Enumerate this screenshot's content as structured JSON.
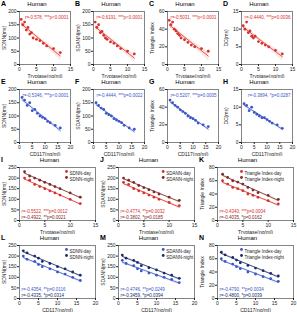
{
  "chart_data": [
    {
      "type": "scatter",
      "letter": "A",
      "title": "Human",
      "x_label": "Tryptase(ng/ml)",
      "y_label": "SDNN(ms)",
      "xlim": [
        0,
        15
      ],
      "xticks": [
        0,
        5,
        10,
        15
      ],
      "ylim": [
        0,
        200
      ],
      "yticks": [
        0,
        50,
        100,
        150,
        200
      ],
      "series": [
        {
          "color": "#d9302b",
          "annotation": "r=-0.578, ***p<0.0001",
          "x": [
            0.5,
            1,
            1.5,
            2,
            2.5,
            3,
            3.5,
            4,
            5,
            6,
            7,
            8,
            10,
            12
          ],
          "y": [
            170,
            150,
            160,
            130,
            140,
            115,
            120,
            100,
            95,
            90,
            80,
            70,
            60,
            45
          ]
        }
      ]
    },
    {
      "type": "scatter",
      "letter": "B",
      "title": "Human",
      "x_label": "Tryptase(ng/ml)",
      "y_label": "SDANN(ms)",
      "xlim": [
        0,
        15
      ],
      "xticks": [
        0,
        5,
        10,
        15
      ],
      "ylim": [
        0,
        200
      ],
      "yticks": [
        0,
        50,
        100,
        150,
        200
      ],
      "series": [
        {
          "color": "#d9302b",
          "annotation": "r=-0.6191, ***p<0.0001",
          "x": [
            0.5,
            1,
            1.5,
            2,
            2.5,
            3,
            3.5,
            4,
            5,
            6,
            7,
            8,
            10,
            12
          ],
          "y": [
            160,
            140,
            150,
            120,
            125,
            110,
            100,
            95,
            85,
            80,
            70,
            60,
            50,
            40
          ]
        }
      ]
    },
    {
      "type": "scatter",
      "letter": "C",
      "title": "Human",
      "x_label": "Tryptase(ng/ml)",
      "y_label": "Triangle Index",
      "xlim": [
        0,
        15
      ],
      "xticks": [
        0,
        5,
        10,
        15
      ],
      "ylim": [
        0,
        60
      ],
      "yticks": [
        0,
        20,
        40,
        60
      ],
      "series": [
        {
          "color": "#d9302b",
          "annotation": "r=-0.5031, ***p<0.0001",
          "x": [
            0.5,
            1,
            1.5,
            2,
            2.5,
            3,
            3.5,
            4,
            5,
            6,
            7,
            8,
            10,
            12
          ],
          "y": [
            50,
            45,
            48,
            40,
            38,
            35,
            33,
            30,
            28,
            25,
            22,
            20,
            18,
            15
          ]
        }
      ]
    },
    {
      "type": "scatter",
      "letter": "D",
      "title": "Human",
      "x_label": "Tryptase(ng/ml)",
      "y_label": "DC(ms)",
      "xlim": [
        0,
        15
      ],
      "xticks": [
        0,
        5,
        10,
        15
      ],
      "ylim": [
        0,
        15
      ],
      "yticks": [
        0,
        5,
        10,
        15
      ],
      "series": [
        {
          "color": "#d9302b",
          "annotation": "r=-0.4440, ***p=0.0036",
          "x": [
            0.5,
            1,
            1.5,
            2,
            2.5,
            3,
            3.5,
            4,
            5,
            6,
            7,
            8,
            10,
            12
          ],
          "y": [
            11,
            10,
            12,
            9,
            9.5,
            8,
            7.5,
            8,
            6.5,
            6,
            5.5,
            5,
            4,
            3
          ]
        }
      ]
    },
    {
      "type": "scatter",
      "letter": "E",
      "title": "Human",
      "x_label": "CD117(ng/ml)",
      "y_label": "SDNN(ms)",
      "xlim": [
        0,
        20
      ],
      "xticks": [
        0,
        5,
        10,
        15,
        20
      ],
      "ylim": [
        0,
        200
      ],
      "yticks": [
        0,
        50,
        100,
        150,
        200
      ],
      "series": [
        {
          "color": "#3a56c8",
          "annotation": "r=-0.5346, ***p<0.0001",
          "x": [
            1,
            2,
            3,
            4,
            5,
            6,
            7,
            8,
            9,
            10,
            11,
            12,
            14,
            16
          ],
          "y": [
            170,
            160,
            140,
            150,
            120,
            125,
            110,
            100,
            95,
            90,
            80,
            75,
            65,
            55
          ]
        }
      ]
    },
    {
      "type": "scatter",
      "letter": "F",
      "title": "Human",
      "x_label": "CD117(ng/ml)",
      "y_label": "SDANN(ms)",
      "xlim": [
        0,
        20
      ],
      "xticks": [
        0,
        5,
        10,
        15,
        20
      ],
      "ylim": [
        0,
        200
      ],
      "yticks": [
        0,
        50,
        100,
        150,
        200
      ],
      "series": [
        {
          "color": "#3a56c8",
          "annotation": "r=-0.4444, ***p=0.0022",
          "x": [
            1,
            2,
            3,
            4,
            5,
            6,
            7,
            8,
            9,
            10,
            11,
            12,
            14,
            16
          ],
          "y": [
            150,
            140,
            130,
            125,
            110,
            105,
            100,
            90,
            85,
            80,
            75,
            65,
            55,
            50
          ]
        }
      ]
    },
    {
      "type": "scatter",
      "letter": "G",
      "title": "Human",
      "x_label": "CD117(ng/ml)",
      "y_label": "Triangle Index",
      "xlim": [
        0,
        20
      ],
      "xticks": [
        0,
        5,
        10,
        15,
        20
      ],
      "ylim": [
        0,
        60
      ],
      "yticks": [
        0,
        20,
        40,
        60
      ],
      "series": [
        {
          "color": "#3a56c8",
          "annotation": "r=-0.5207, ***p=0.0005",
          "x": [
            1,
            2,
            3,
            4,
            5,
            6,
            7,
            8,
            9,
            10,
            11,
            12,
            14,
            16
          ],
          "y": [
            48,
            45,
            42,
            40,
            37,
            35,
            33,
            30,
            28,
            27,
            25,
            22,
            20,
            18
          ]
        }
      ]
    },
    {
      "type": "scatter",
      "letter": "H",
      "title": "Human",
      "x_label": "CD117(ng/ml)",
      "y_label": "DC(ms)",
      "xlim": [
        0,
        20
      ],
      "xticks": [
        0,
        5,
        10,
        15,
        20
      ],
      "ylim": [
        0,
        15
      ],
      "yticks": [
        0,
        5,
        10,
        15
      ],
      "series": [
        {
          "color": "#3a56c8",
          "annotation": "r=-0.3894, *p=0.0287",
          "x": [
            1,
            2,
            3,
            4,
            5,
            6,
            7,
            8,
            9,
            10,
            11,
            12,
            14,
            16
          ],
          "y": [
            11,
            10.5,
            9,
            10,
            8.5,
            8,
            7.5,
            7,
            7,
            6.5,
            6,
            5.5,
            5,
            4
          ]
        }
      ]
    },
    {
      "type": "scatter",
      "letter": "I",
      "title": "Human",
      "x_label": "Tryptase(ng/ml)",
      "y_label": "SDNN(ms)",
      "xlim": [
        0,
        15
      ],
      "xticks": [
        0,
        5,
        10,
        15
      ],
      "ylim": [
        0,
        250
      ],
      "yticks": [
        0,
        50,
        100,
        150,
        200,
        250
      ],
      "legend": "top-right",
      "series": [
        {
          "name": "SDNN-day",
          "color": "#d9302b",
          "annotation": "r=-0.5522, ***p=0.0012",
          "x": [
            1,
            2,
            3,
            4,
            5,
            6,
            7,
            8,
            10,
            12
          ],
          "y": [
            200,
            190,
            170,
            160,
            150,
            140,
            130,
            120,
            100,
            80
          ]
        },
        {
          "name": "SDNN-night",
          "color": "#7a2a2a",
          "annotation": "r=-0.4922, **p=0.0021",
          "x": [
            1,
            2,
            3,
            4,
            5,
            6,
            7,
            8,
            10,
            12
          ],
          "y": [
            230,
            210,
            200,
            190,
            180,
            170,
            160,
            150,
            130,
            110
          ]
        }
      ]
    },
    {
      "type": "scatter",
      "letter": "J",
      "title": "Human",
      "x_label": "Tryptase(ng/ml)",
      "y_label": "SDANN(ms)",
      "xlim": [
        0,
        15
      ],
      "xticks": [
        0,
        5,
        10,
        15
      ],
      "ylim": [
        0,
        250
      ],
      "yticks": [
        0,
        50,
        100,
        150,
        200,
        250
      ],
      "legend": "top-right",
      "series": [
        {
          "name": "SDANN-day",
          "color": "#d9302b",
          "annotation": "r=-0.4774, **p=0.0032",
          "x": [
            1,
            2,
            3,
            4,
            5,
            6,
            7,
            8,
            10,
            12
          ],
          "y": [
            180,
            170,
            150,
            140,
            130,
            120,
            110,
            100,
            85,
            70
          ]
        },
        {
          "name": "SDANN-night",
          "color": "#7a2a2a",
          "annotation": "r=-0.3802, *p=0.0185",
          "x": [
            1,
            2,
            3,
            4,
            5,
            6,
            7,
            8,
            10,
            12
          ],
          "y": [
            200,
            190,
            180,
            165,
            155,
            145,
            135,
            125,
            110,
            95
          ]
        }
      ]
    },
    {
      "type": "scatter",
      "letter": "K",
      "title": "Human",
      "x_label": "Tryptase(ng/ml)",
      "y_label": "Triangle Index",
      "xlim": [
        0,
        15
      ],
      "xticks": [
        0,
        5,
        10,
        15
      ],
      "ylim": [
        0,
        80
      ],
      "yticks": [
        0,
        20,
        40,
        60,
        80
      ],
      "legend": "top-right",
      "series": [
        {
          "name": "Triangle Index-day",
          "color": "#d9302b",
          "annotation": "r=-0.4340, ***p=0.0004",
          "x": [
            1,
            2,
            3,
            4,
            5,
            6,
            7,
            8,
            10,
            12
          ],
          "y": [
            60,
            55,
            50,
            48,
            45,
            40,
            38,
            35,
            30,
            25
          ]
        },
        {
          "name": "Triangle Index-night",
          "color": "#7a2a2a",
          "annotation": "r=-0.4035, *p=0.0162",
          "x": [
            1,
            2,
            3,
            4,
            5,
            6,
            7,
            8,
            10,
            12
          ],
          "y": [
            70,
            65,
            60,
            58,
            55,
            50,
            46,
            42,
            38,
            32
          ]
        }
      ]
    },
    {
      "type": "scatter",
      "letter": "L",
      "title": "Human",
      "x_label": "CD117(ng/ml)",
      "y_label": "SDNN(ms)",
      "xlim": [
        0,
        20
      ],
      "xticks": [
        0,
        5,
        10,
        15,
        20
      ],
      "ylim": [
        0,
        250
      ],
      "yticks": [
        0,
        50,
        100,
        150,
        200,
        250
      ],
      "legend": "top-right",
      "series": [
        {
          "name": "SDNN-day",
          "color": "#3a56c8",
          "annotation": "r=-0.4354, **p=0.0116",
          "x": [
            1,
            2,
            4,
            5,
            6,
            8,
            10,
            12,
            14,
            16
          ],
          "y": [
            200,
            185,
            175,
            160,
            150,
            140,
            125,
            115,
            100,
            85
          ]
        },
        {
          "name": "SDNN-night",
          "color": "#1b2a6b",
          "annotation": "r=-0.4335, *p=0.0314",
          "x": [
            1,
            2,
            4,
            5,
            6,
            8,
            10,
            12,
            14,
            16
          ],
          "y": [
            225,
            215,
            200,
            190,
            175,
            165,
            150,
            140,
            125,
            110
          ]
        }
      ]
    },
    {
      "type": "scatter",
      "letter": "M",
      "title": "Human",
      "x_label": "CD117(ng/ml)",
      "y_label": "SDANN(ms)",
      "xlim": [
        0,
        20
      ],
      "xticks": [
        0,
        5,
        10,
        15,
        20
      ],
      "ylim": [
        0,
        250
      ],
      "yticks": [
        0,
        50,
        100,
        150,
        200,
        250
      ],
      "legend": "top-right",
      "series": [
        {
          "name": "SDANN-day",
          "color": "#3a56c8",
          "annotation": "r=-0.4746, **p=0.0249",
          "x": [
            1,
            2,
            4,
            5,
            6,
            8,
            10,
            12,
            14,
            16
          ],
          "y": [
            180,
            165,
            155,
            140,
            130,
            120,
            110,
            100,
            90,
            75
          ]
        },
        {
          "name": "SDANN-night",
          "color": "#1b2a6b",
          "annotation": "r=-0.3459, *p=0.0394",
          "x": [
            1,
            2,
            4,
            5,
            6,
            8,
            10,
            12,
            14,
            16
          ],
          "y": [
            205,
            190,
            180,
            170,
            155,
            145,
            135,
            120,
            110,
            95
          ]
        }
      ]
    },
    {
      "type": "scatter",
      "letter": "N",
      "title": "Human",
      "x_label": "CD117(ng/ml)",
      "y_label": "Triangle Index",
      "xlim": [
        0,
        20
      ],
      "xticks": [
        0,
        5,
        10,
        15,
        20
      ],
      "ylim": [
        0,
        80
      ],
      "yticks": [
        0,
        20,
        40,
        60,
        80
      ],
      "legend": "top-right",
      "series": [
        {
          "name": "Triangle Index-day",
          "color": "#3a56c8",
          "annotation": "r=-0.4790, **p=0.0034",
          "x": [
            1,
            2,
            4,
            5,
            6,
            8,
            10,
            12,
            14,
            16
          ],
          "y": [
            60,
            56,
            52,
            48,
            45,
            40,
            37,
            33,
            30,
            26
          ]
        },
        {
          "name": "Triangle Index-night",
          "color": "#1b2a6b",
          "annotation": "r=-0.4800, *p=0.0039",
          "x": [
            1,
            2,
            4,
            5,
            6,
            8,
            10,
            12,
            14,
            16
          ],
          "y": [
            70,
            66,
            62,
            58,
            54,
            50,
            46,
            42,
            38,
            34
          ]
        }
      ]
    }
  ]
}
